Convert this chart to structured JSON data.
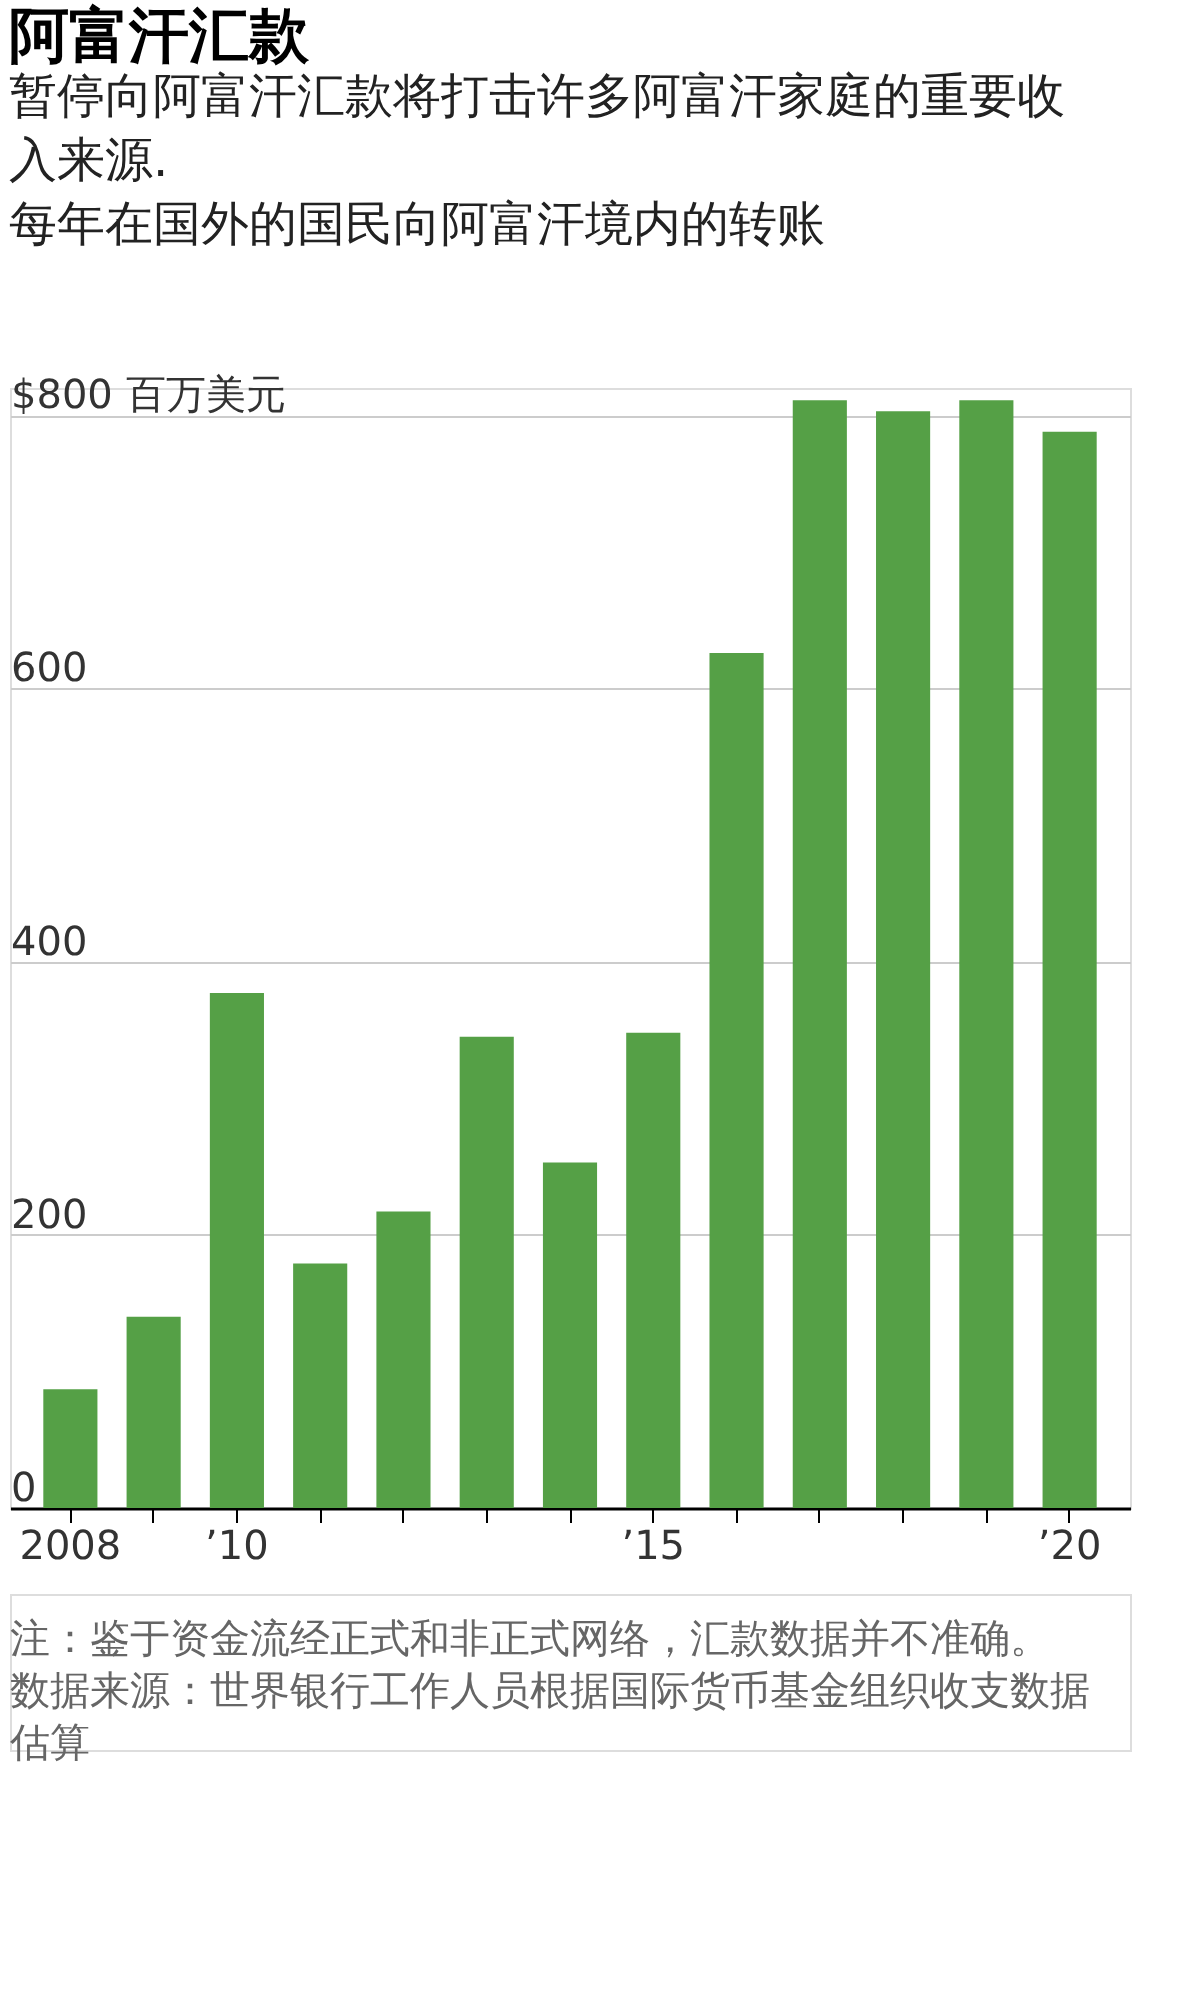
{
  "chart_data": {
    "type": "bar",
    "title": "阿富汗汇款",
    "subtitle": "暂停向阿富汗汇款将打击许多阿富汗家庭的重要收入来源.",
    "ylabel": "每年在国外的国民向阿富汗境内的转账",
    "categories": [
      "2008",
      null,
      "’10",
      null,
      null,
      null,
      null,
      "’15",
      null,
      null,
      null,
      null,
      "’20"
    ],
    "values": [
      87,
      140,
      377,
      179,
      217,
      345,
      253,
      348,
      626,
      811,
      803,
      811,
      788
    ],
    "color": "#55a046",
    "ylim": [
      0,
      820
    ],
    "yticks": [
      0,
      200,
      400,
      600,
      {
        "value": 800,
        "label": "$800 百万美元"
      }
    ],
    "grid": "y",
    "annotations": [
      "注：鉴于资金流经正式和非正式网络，汇款数据并不准确。",
      "数据来源：世界银行工作人员根据国际货币基金组织收支数据估算"
    ]
  }
}
